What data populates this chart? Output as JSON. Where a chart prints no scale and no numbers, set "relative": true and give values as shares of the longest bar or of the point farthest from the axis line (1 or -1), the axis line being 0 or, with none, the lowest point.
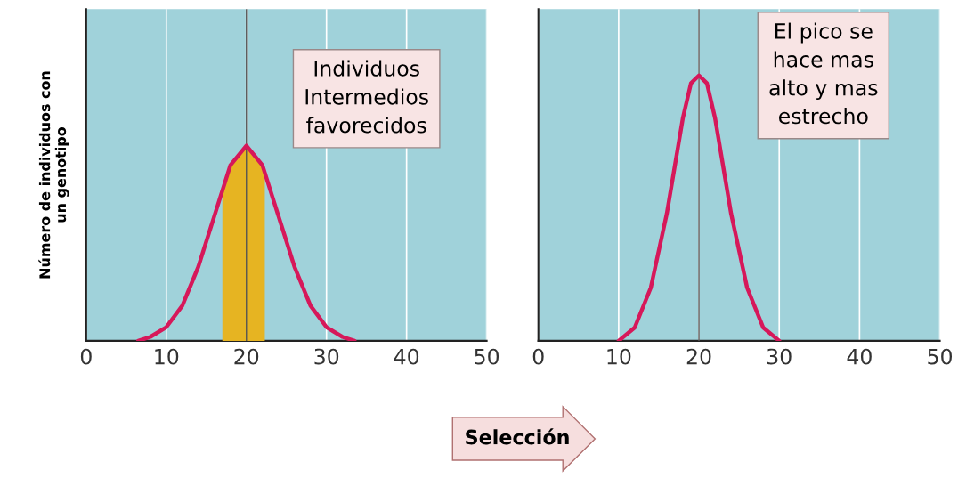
{
  "chart_data": [
    {
      "type": "line",
      "relative": true,
      "ylabel": "Número de individuos con\nun genotipo",
      "xlim": [
        0,
        50
      ],
      "xticks": [
        0,
        10,
        20,
        30,
        40,
        50
      ],
      "tick_labels": "x",
      "grid": "x",
      "marker": "none",
      "line_style": "solid",
      "x": [
        6.5,
        8,
        10,
        12,
        14,
        16,
        18,
        20,
        22,
        24,
        26,
        28,
        30,
        32,
        33.5
      ],
      "series": [
        {
          "color": "#d6185a",
          "values": [
            0,
            0.02,
            0.07,
            0.18,
            0.38,
            0.64,
            0.9,
            1,
            0.9,
            0.64,
            0.38,
            0.18,
            0.07,
            0.02,
            0
          ]
        }
      ],
      "bands": [
        {
          "axis": "x",
          "from": 17,
          "to": 22.3,
          "color": "#e6b422"
        }
      ],
      "ref_lines": [
        {
          "axis": "x",
          "value": 20,
          "color": "#555555"
        }
      ],
      "annotations": [
        "Individuos\nIntermedios\nfavorecidos",
        "Selección"
      ]
    },
    {
      "type": "line",
      "relative": true,
      "xlim": [
        0,
        50
      ],
      "xticks": [
        0,
        10,
        20,
        30,
        40,
        50
      ],
      "tick_labels": "x",
      "grid": "x",
      "marker": "none",
      "line_style": "solid",
      "x": [
        10,
        12,
        14,
        16,
        17,
        18,
        19,
        20,
        21,
        22,
        23,
        24,
        26,
        28,
        30
      ],
      "series": [
        {
          "color": "#d6185a",
          "values": [
            0,
            0.05,
            0.2,
            0.48,
            0.66,
            0.84,
            0.97,
            1,
            0.97,
            0.84,
            0.66,
            0.48,
            0.2,
            0.05,
            0
          ]
        }
      ],
      "ref_lines": [
        {
          "axis": "x",
          "value": 20,
          "color": "#555555"
        }
      ],
      "annotations": [
        "El pico se\nhace mas\nalto y mas\nestrecho"
      ]
    }
  ]
}
